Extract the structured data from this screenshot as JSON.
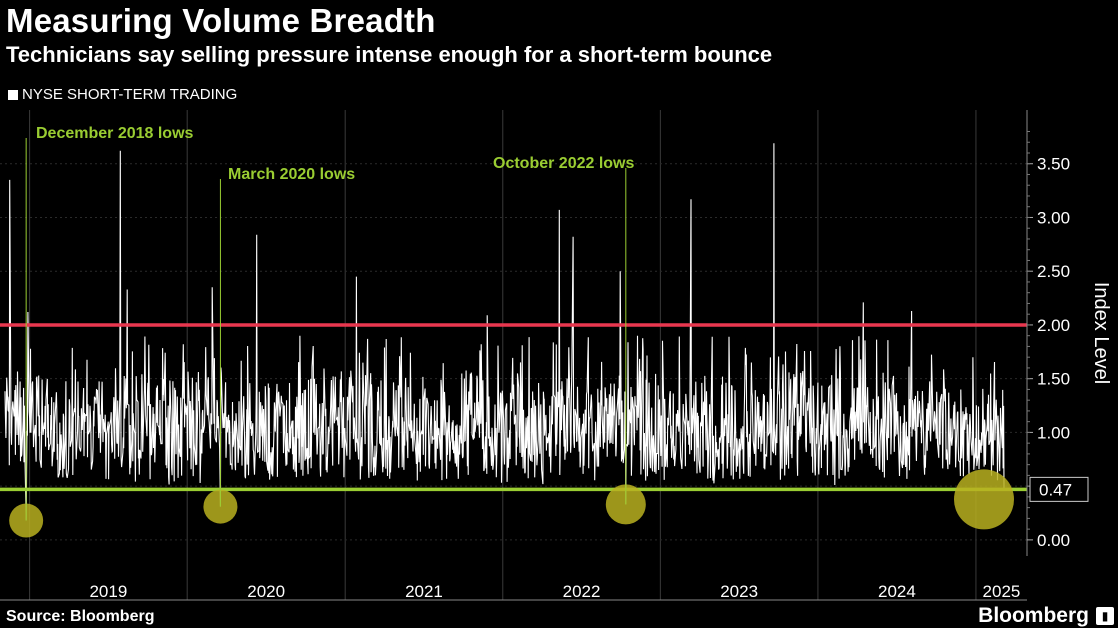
{
  "title": "Measuring Volume Breadth",
  "subtitle": "Technicians say selling pressure intense enough for a short-term bounce",
  "legend": "NYSE SHORT-TERM TRADING",
  "source": "Source: Bloomberg",
  "brand": "Bloomberg",
  "colors": {
    "background": "#000000",
    "series": "#ffffff",
    "red_line": "#e8374f",
    "green_line": "#9acd32",
    "annotation": "#9acd32",
    "circle": "#b8b020"
  },
  "chart_data": {
    "type": "line",
    "series": [
      {
        "name": "NYSE SHORT-TERM TRADING",
        "color": "#ffffff",
        "x_start": "2018-11-05",
        "x_end": "2025-03-07",
        "last_value": 0.47,
        "mean": 1.05,
        "spikes": [
          {
            "x": "2018-11-16",
            "y": 3.35
          },
          {
            "x": "2018-12-24",
            "y": 0.18
          },
          {
            "x": "2018-12-28",
            "y": 2.12
          },
          {
            "x": "2019-07-30",
            "y": 3.62
          },
          {
            "x": "2019-08-15",
            "y": 2.33
          },
          {
            "x": "2020-02-28",
            "y": 2.35
          },
          {
            "x": "2020-03-18",
            "y": 0.31
          },
          {
            "x": "2020-06-10",
            "y": 2.84
          },
          {
            "x": "2021-01-27",
            "y": 2.45
          },
          {
            "x": "2021-11-26",
            "y": 2.09
          },
          {
            "x": "2022-05-12",
            "y": 3.07
          },
          {
            "x": "2022-06-13",
            "y": 2.82
          },
          {
            "x": "2022-09-30",
            "y": 2.5
          },
          {
            "x": "2022-10-13",
            "y": 0.33
          },
          {
            "x": "2023-03-13",
            "y": 3.17
          },
          {
            "x": "2023-09-21",
            "y": 3.69
          },
          {
            "x": "2024-04-15",
            "y": 2.21
          },
          {
            "x": "2024-08-05",
            "y": 2.13
          },
          {
            "x": "2025-03-07",
            "y": 0.47
          }
        ]
      }
    ],
    "reference_lines": [
      {
        "y": 2.0,
        "color": "#e8374f"
      },
      {
        "y": 0.47,
        "color": "#9acd32",
        "label": "0.47"
      }
    ],
    "annotations": [
      {
        "text": "December 2018 lows",
        "x": "2018-12-24",
        "y": 0.18
      },
      {
        "text": "March 2020 lows",
        "x": "2020-03-18",
        "y": 0.31
      },
      {
        "text": "October 2022 lows",
        "x": "2022-10-13",
        "y": 0.33
      }
    ],
    "highlight_circles": [
      {
        "x": "2018-12-24",
        "y": 0.18
      },
      {
        "x": "2020-03-18",
        "y": 0.31
      },
      {
        "x": "2022-10-13",
        "y": 0.33
      },
      {
        "x": "2025-03-07",
        "y": 0.47
      }
    ],
    "x_ticks": [
      "2019",
      "2020",
      "2021",
      "2022",
      "2023",
      "2024",
      "2025"
    ],
    "y_ticks": [
      "0.00",
      "0.50",
      "1.00",
      "1.50",
      "2.00",
      "2.50",
      "3.00",
      "3.50"
    ],
    "ylabel": "Index Level",
    "ylim": [
      -0.15,
      4.0
    ],
    "y_axis_side": "right",
    "grid": true
  }
}
